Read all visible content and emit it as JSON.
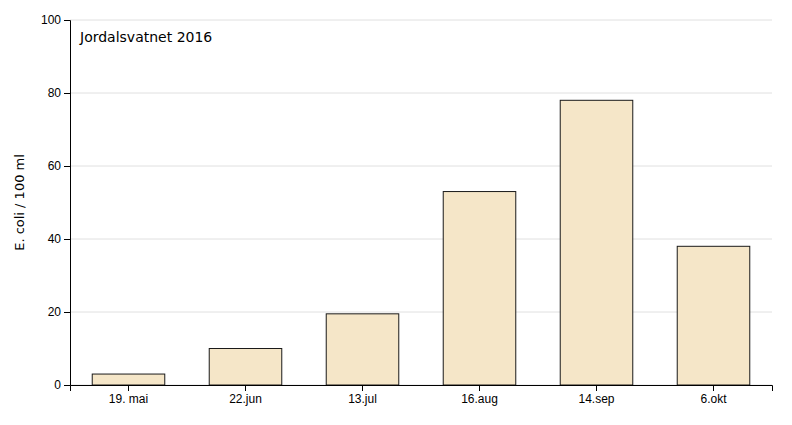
{
  "chart_data": {
    "type": "bar",
    "categories": [
      "19. mai",
      "22.jun",
      "13.jul",
      "16.aug",
      "14.sep",
      "6.okt"
    ],
    "series": [
      {
        "name": "Jordalsvatnet 2016",
        "color": "#F5E6C8",
        "values": [
          3,
          10,
          19.5,
          53,
          78,
          38
        ]
      }
    ],
    "ylabel": "E. coli / 100 ml",
    "ylim": [
      0,
      100
    ],
    "yticks": [
      0,
      20,
      40,
      60,
      80,
      100
    ],
    "grid": true,
    "legend": "top-left"
  }
}
